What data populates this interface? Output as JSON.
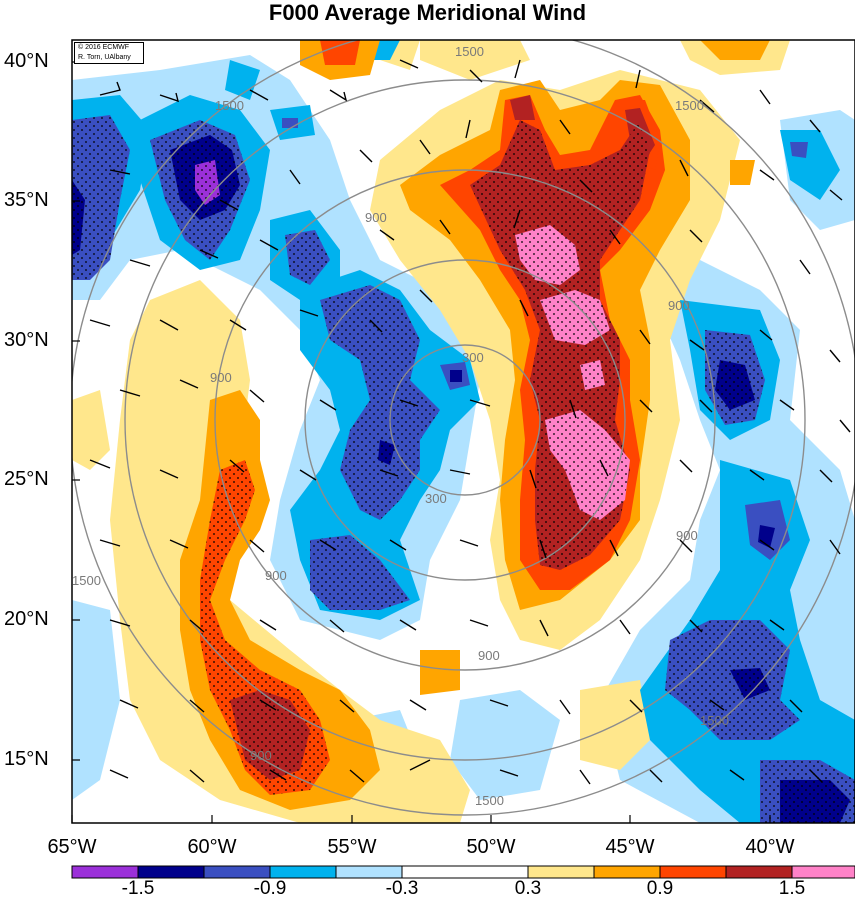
{
  "title": "F000 Average Meridional Wind",
  "credit": [
    "© 2016 ECMWF",
    "R. Torn, UAlbany"
  ],
  "lat_labels": [
    "40°N",
    "35°N",
    "30°N",
    "25°N",
    "20°N",
    "15°N"
  ],
  "lon_labels": [
    "65°W",
    "60°W",
    "55°W",
    "50°W",
    "45°W",
    "40°W"
  ],
  "colorbar": {
    "labels": [
      "-1.5",
      "-0.9",
      "-0.3",
      "0.3",
      "0.9",
      "1.5"
    ],
    "colors": [
      "#9b30d9",
      "#00008b",
      "#3a4fc1",
      "#00b2ee",
      "#b0e2ff",
      "#ffffff",
      "#ffe78c",
      "#ffa500",
      "#ff4500",
      "#b22222",
      "#ff82c8"
    ]
  },
  "contour_labels": [
    "1500",
    "1500",
    "1500",
    "1500",
    "1500",
    "1500",
    "900",
    "900",
    "900",
    "900",
    "900",
    "900",
    "900",
    "300",
    "300"
  ],
  "shading_colors": {
    "neg_strong": "#00008b",
    "neg_mid": "#3a4fc1",
    "neg_weak": "#00b2ee",
    "neg_light": "#b0e2ff",
    "pos_light": "#ffe78c",
    "pos_weak": "#ffa500",
    "pos_mid": "#ff4500",
    "pos_strong": "#b22222",
    "pos_max": "#ff82c8",
    "purple": "#9b30d9"
  }
}
